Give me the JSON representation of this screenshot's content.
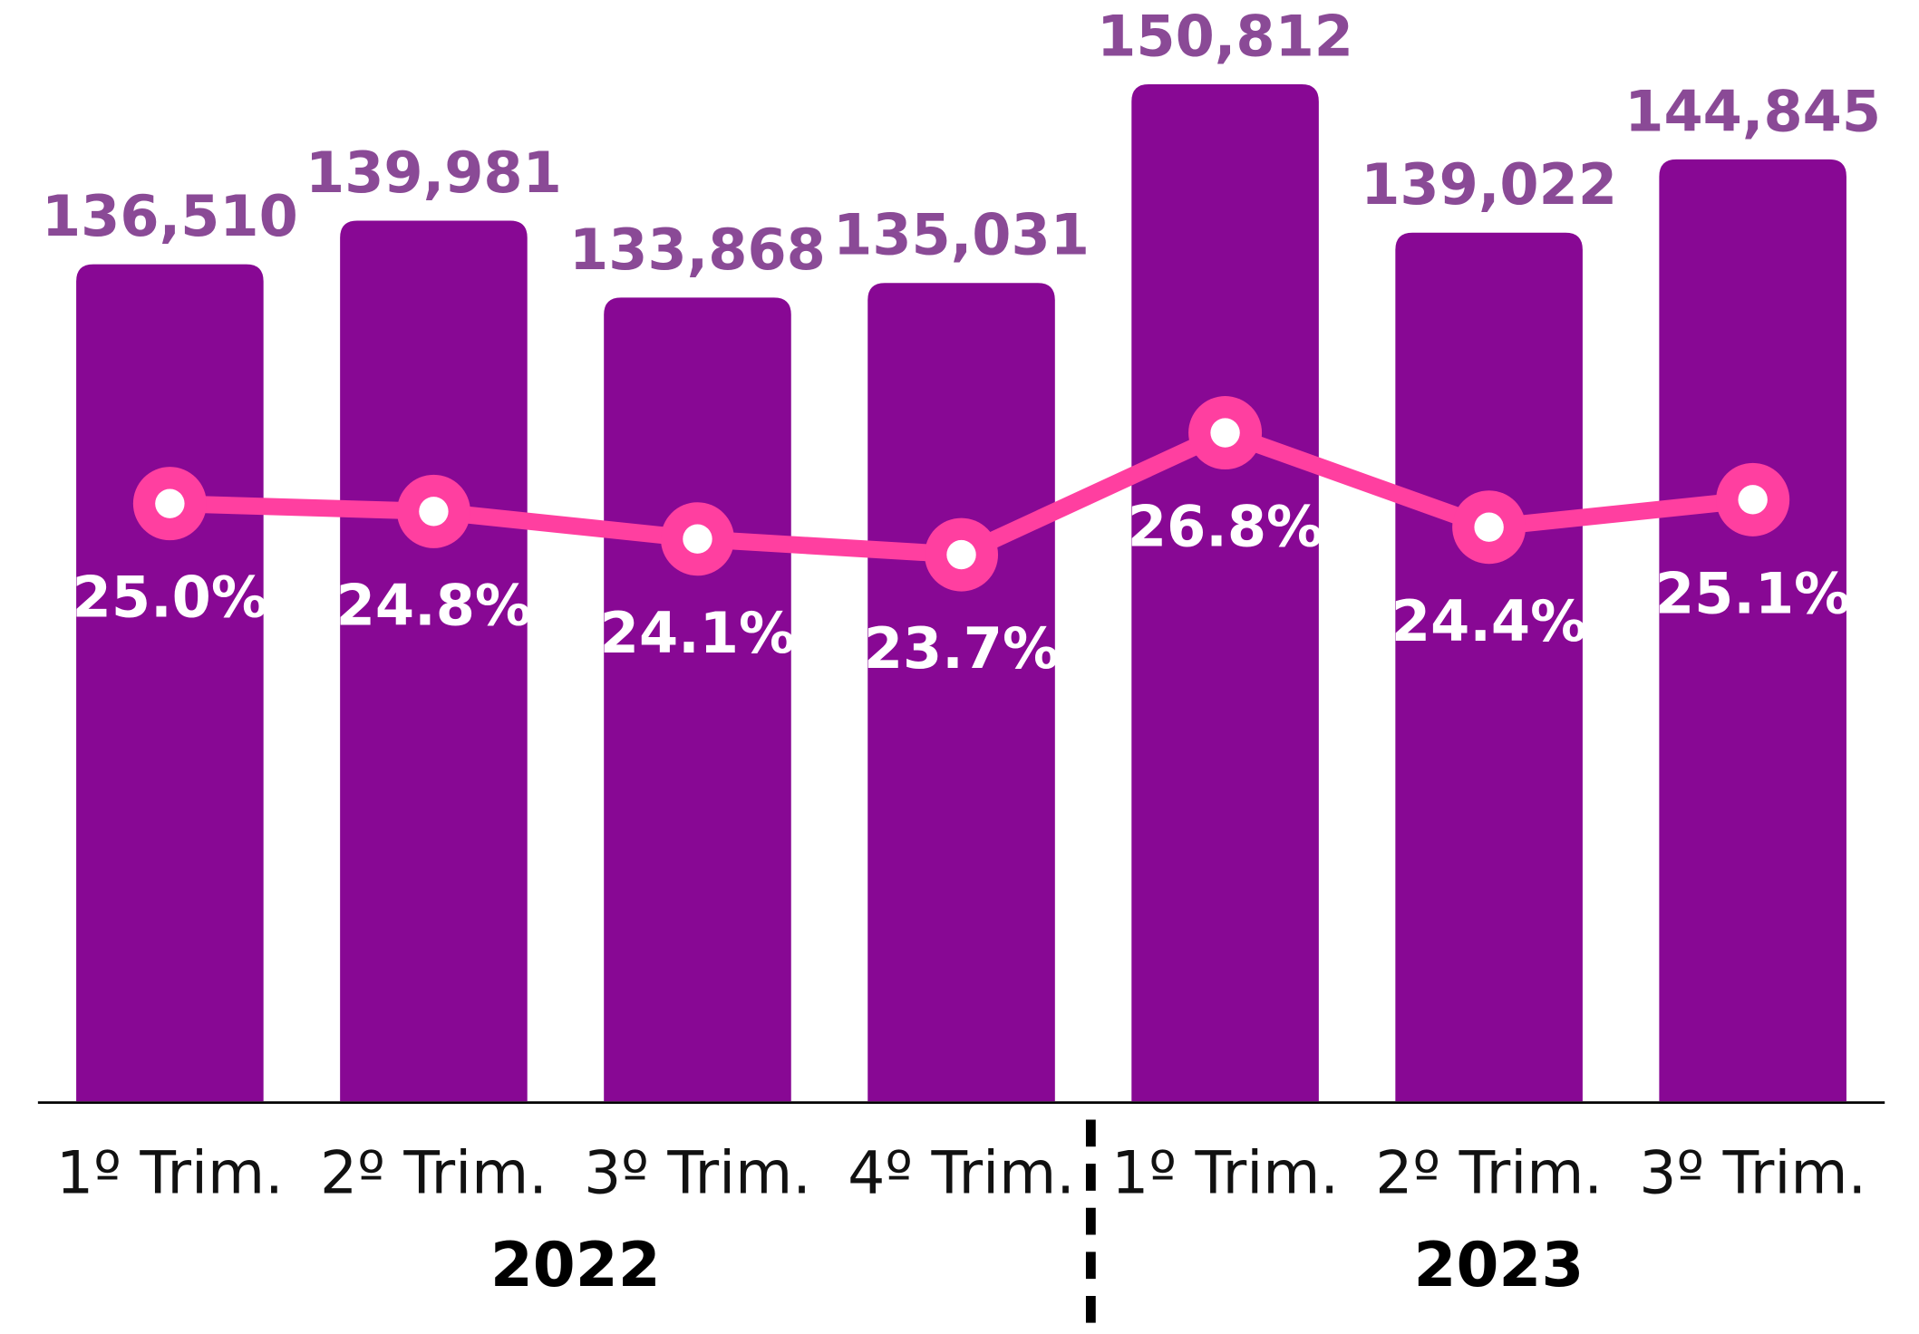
{
  "chart_data": {
    "type": "bar",
    "categories": [
      "1º Trim.",
      "2º Trim.",
      "3º Trim.",
      "4º Trim.",
      "1º Trim.",
      "2º Trim.",
      "3º Trim."
    ],
    "groups": [
      {
        "name": "2022",
        "count": 4
      },
      {
        "name": "2023",
        "count": 3
      }
    ],
    "ylim": [
      70000,
      157500
    ],
    "y2lim": [
      9.8,
      37.8
    ],
    "series": [
      {
        "name": null,
        "type": "bar",
        "color": "#880894",
        "values": [
          136510,
          139981,
          133868,
          135031,
          150812,
          139022,
          144845
        ],
        "value_labels": [
          "136,510",
          "139,981",
          "133,868",
          "135,031",
          "150,812",
          "139,022",
          "144,845"
        ]
      },
      {
        "name": null,
        "type": "line",
        "axis": "y2",
        "color": "#ff3fa0",
        "values": [
          25.0,
          24.8,
          24.1,
          23.7,
          26.8,
          24.4,
          25.1
        ],
        "value_labels": [
          "25.0%",
          "24.8%",
          "24.1%",
          "23.7%",
          "26.8%",
          "24.4%",
          "25.1%"
        ]
      }
    ]
  }
}
